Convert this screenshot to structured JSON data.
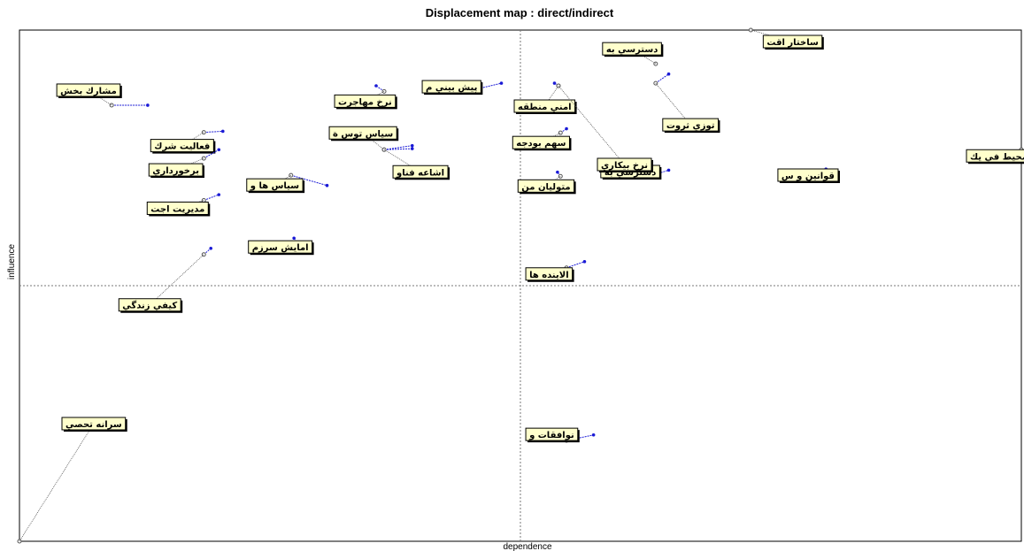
{
  "chart_data": {
    "type": "scatter",
    "title": "Displacement map : direct/indirect",
    "xlabel": "dependence",
    "ylabel": "influence",
    "xlim": [
      0,
      100
    ],
    "ylim": [
      0,
      100
    ],
    "grid": false,
    "quadrant_lines": {
      "x": 50,
      "y": 50
    },
    "colors": {
      "frame": "#000000",
      "connector": "#555555",
      "displacement": "#1a1ad6",
      "label_bg": "#ffffcc",
      "point": "#555555"
    },
    "points": [
      {
        "label": "ساختار اقت",
        "direct": [
          73,
          100
        ],
        "indirect": [
          73,
          100
        ]
      },
      {
        "label": "دسترسي به",
        "direct": [
          63.5,
          93.4
        ],
        "indirect": [
          63.5,
          93.4
        ]
      },
      {
        "label": "توزي ثروت",
        "direct": [
          63.5,
          89.6
        ],
        "indirect": [
          64.8,
          91.4
        ]
      },
      {
        "label": "مشارك بخش",
        "direct": [
          9.2,
          85.3
        ],
        "indirect": [
          12.8,
          85.3
        ]
      },
      {
        "label": "نرخ مهاجرت",
        "direct": [
          36.4,
          88.0
        ],
        "indirect": [
          35.6,
          89.1
        ]
      },
      {
        "label": "پيش بيني م",
        "direct": [
          45.5,
          88.4
        ],
        "indirect": [
          48.1,
          89.6
        ]
      },
      {
        "label": "امني منطقه",
        "direct": [
          53.8,
          89.1
        ],
        "indirect": [
          53.4,
          89.6
        ]
      },
      {
        "label": "فعاليت شرك",
        "direct": [
          18.4,
          80.0
        ],
        "indirect": [
          20.3,
          80.2
        ]
      },
      {
        "label": "سهم بودجه",
        "direct": [
          54.0,
          79.9
        ],
        "indirect": [
          54.6,
          80.7
        ]
      },
      {
        "label": "سياس توس ة",
        "direct": [
          36.4,
          76.6
        ],
        "indirect": [
          39.2,
          77.4
        ]
      },
      {
        "label": "اشاعه فناو",
        "direct": [
          36.4,
          76.6
        ],
        "indirect": [
          39.2,
          76.8
        ]
      },
      {
        "label": "برخورداري",
        "direct": [
          18.4,
          74.9
        ],
        "indirect": [
          19.9,
          76.6
        ]
      },
      {
        "label": "محيط في يك",
        "direct": [
          100,
          76.6
        ],
        "indirect": [
          100,
          76.6
        ]
      },
      {
        "label": "قوانين و س",
        "direct": [
          81.0,
          71.8
        ],
        "indirect": [
          80.5,
          72.8
        ]
      },
      {
        "label": "دسترسي به",
        "direct": [
          63.5,
          71.8
        ],
        "indirect": [
          64.8,
          72.6
        ]
      },
      {
        "label": "متوليان من",
        "direct": [
          54.0,
          71.4
        ],
        "indirect": [
          53.7,
          72.2
        ]
      },
      {
        "label": "سياس ها و",
        "direct": [
          27.1,
          71.6
        ],
        "indirect": [
          30.7,
          69.6
        ]
      },
      {
        "label": "مديريت اجت",
        "direct": [
          18.4,
          66.7
        ],
        "indirect": [
          19.9,
          67.8
        ]
      },
      {
        "label": "نرخ بيكاري",
        "direct": [
          53.8,
          89.1
        ],
        "indirect": [
          53.8,
          89.1
        ]
      },
      {
        "label": "امايش سرزم",
        "direct": [
          27.8,
          58.1
        ],
        "indirect": [
          27.4,
          59.3
        ]
      },
      {
        "label": "كيفي زندگي",
        "direct": [
          18.4,
          56.1
        ],
        "indirect": [
          19.1,
          57.3
        ]
      },
      {
        "label": "الاينده ها",
        "direct": [
          54.6,
          53.5
        ],
        "indirect": [
          56.4,
          54.7
        ]
      },
      {
        "label": "نوافقات و",
        "direct": [
          54.6,
          19.7
        ],
        "indirect": [
          57.3,
          20.8
        ]
      },
      {
        "label": "سرانه تحصي",
        "direct": [
          0,
          0
        ],
        "indirect": [
          0,
          0
        ]
      }
    ]
  }
}
